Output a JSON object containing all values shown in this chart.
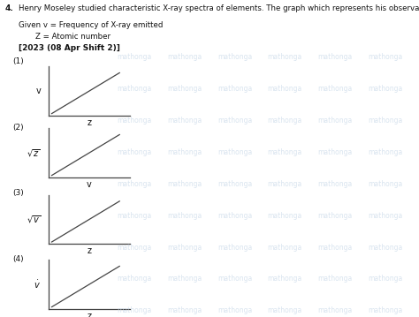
{
  "title_num": "4.",
  "title_text": "  Henry Moseley studied characteristic X-ray spectra of elements. The graph which represents his observation correctly is",
  "line1": "Given v = Frequency of X-ray emitted",
  "line2": "Z = Atomic number",
  "line3": "[2023 (08 Apr Shift 2)]",
  "graphs": [
    {
      "label": "(1)",
      "ylabel": "v",
      "xlabel": "z"
    },
    {
      "label": "(2)",
      "ylabel": "$\\sqrt{z}$",
      "xlabel": "v"
    },
    {
      "label": "(3)",
      "ylabel": "$\\sqrt{v}$",
      "xlabel": "z"
    },
    {
      "label": "(4)",
      "ylabel": "$\\dot{v}$",
      "xlabel": "z"
    }
  ],
  "line_color": "#444444",
  "text_color": "#111111",
  "figsize": [
    4.74,
    3.59
  ],
  "dpi": 100,
  "watermark_texts": [
    "mathonga",
    "mathonga",
    "mathonga",
    "mathonga",
    "mathonga"
  ],
  "watermark_color": "#c8d8e8"
}
